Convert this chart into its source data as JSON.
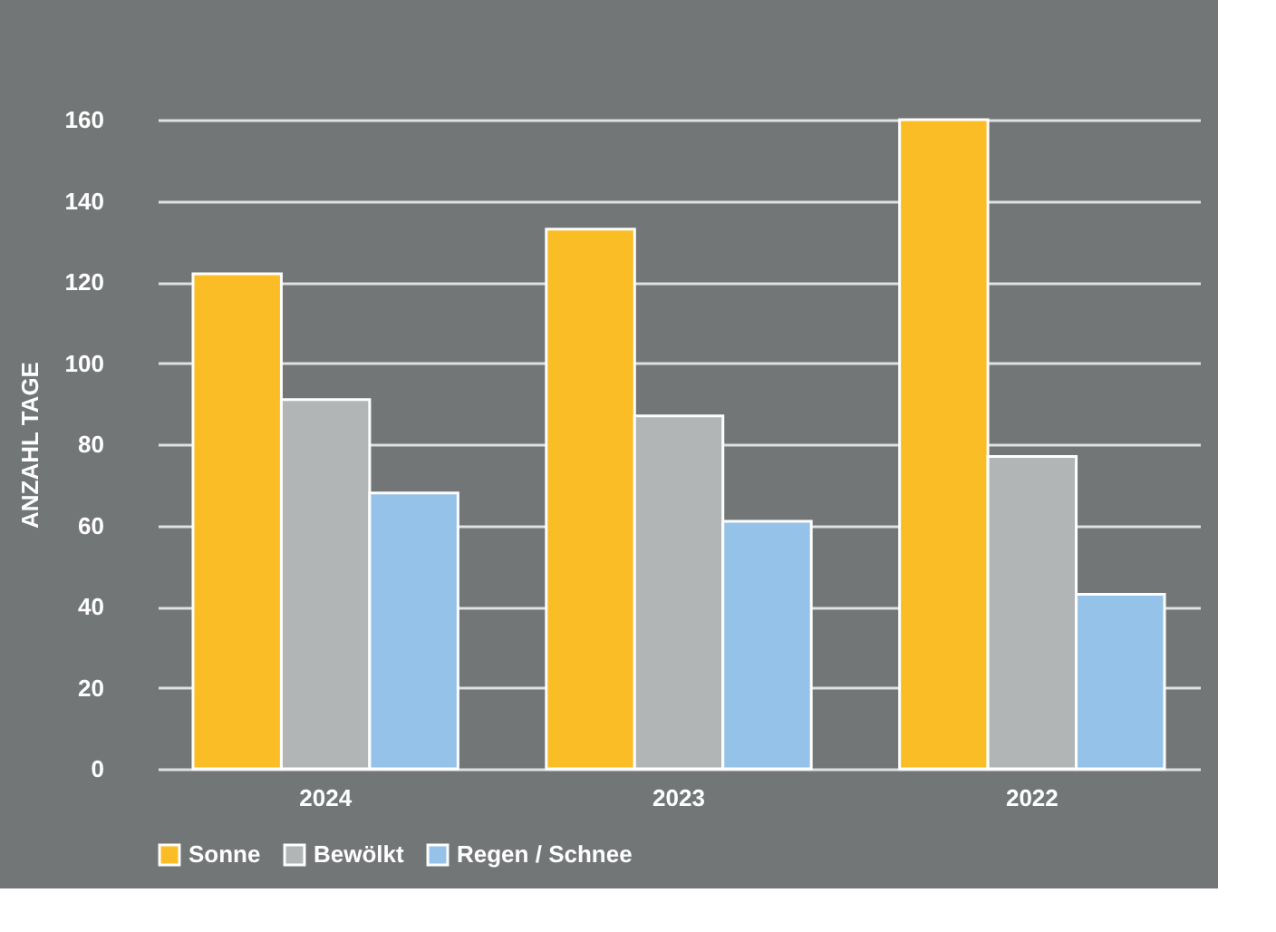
{
  "chart_data": {
    "type": "bar",
    "ylabel": "ANZAHL TAGE",
    "categories": [
      "2024",
      "2023",
      "2022"
    ],
    "series": [
      {
        "name": "Sonne",
        "color": "#fbbd25",
        "values": [
          122,
          133,
          160
        ]
      },
      {
        "name": "Bewölkt",
        "color": "#b2b5b5",
        "values": [
          91,
          87,
          77
        ]
      },
      {
        "name": "Regen / Schnee",
        "color": "#95c2e8",
        "values": [
          68,
          61,
          43
        ]
      }
    ],
    "ylim": [
      0,
      160
    ],
    "yticks": [
      0,
      20,
      40,
      60,
      80,
      100,
      120,
      140,
      160
    ],
    "grid": "y",
    "legend": "bottom"
  }
}
